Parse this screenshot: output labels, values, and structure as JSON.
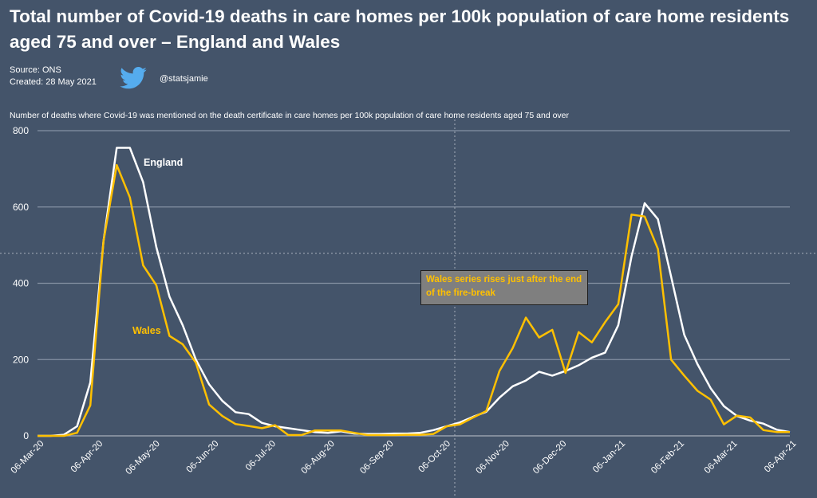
{
  "header": {
    "title": "Total number of Covid-19 deaths in care homes per 100k population of care home residents aged 75 and over – England and Wales",
    "source": "Source: ONS",
    "created": "Created: 28 May 2021",
    "twitter_icon": "twitter-bird-icon",
    "handle": "@statsjamie"
  },
  "colors": {
    "background": "#44546a",
    "england": "#ffffff",
    "wales": "#ffc000",
    "grid": "#8591a3"
  },
  "annotation": {
    "text": "Wales series rises just after the end of the fire-break"
  },
  "chart_data": {
    "type": "line",
    "title": "Number of deaths where Covid-19 was mentioned on the death certificate in care homes per 100k population of care home residents aged 75 and over",
    "xlabel": "",
    "ylabel": "",
    "ylim": [
      0,
      800
    ],
    "yticks": [
      0,
      200,
      400,
      600,
      800
    ],
    "grid": true,
    "x_start": "2020-03-06",
    "x_step_days": 7,
    "xticks": [
      {
        "label": "06-Mar-20",
        "day": 0
      },
      {
        "label": "06-Apr-20",
        "day": 31
      },
      {
        "label": "06-May-20",
        "day": 61
      },
      {
        "label": "06-Jun-20",
        "day": 92
      },
      {
        "label": "06-Jul-20",
        "day": 122
      },
      {
        "label": "06-Aug-20",
        "day": 153
      },
      {
        "label": "06-Sep-20",
        "day": 184
      },
      {
        "label": "06-Oct-20",
        "day": 214
      },
      {
        "label": "06-Nov-20",
        "day": 245
      },
      {
        "label": "06-Dec-20",
        "day": 275
      },
      {
        "label": "06-Jan-21",
        "day": 306
      },
      {
        "label": "06-Feb-21",
        "day": 337
      },
      {
        "label": "06-Mar-21",
        "day": 365
      },
      {
        "label": "06-Apr-21",
        "day": 396
      }
    ],
    "series": [
      {
        "name": "England",
        "label": "England",
        "color": "#ffffff",
        "values": [
          0,
          0,
          3,
          25,
          140,
          510,
          755,
          755,
          665,
          495,
          365,
          290,
          200,
          135,
          92,
          62,
          57,
          34,
          25,
          20,
          15,
          10,
          8,
          12,
          6,
          5,
          5,
          6,
          6,
          8,
          15,
          25,
          35,
          50,
          63,
          100,
          130,
          145,
          168,
          158,
          170,
          185,
          205,
          218,
          290,
          470,
          610,
          568,
          418,
          265,
          188,
          125,
          78,
          52,
          40,
          32,
          16,
          10
        ]
      },
      {
        "name": "Wales",
        "label": "Wales",
        "color": "#ffc000",
        "values": [
          0,
          0,
          0,
          8,
          80,
          510,
          710,
          625,
          447,
          395,
          262,
          240,
          192,
          82,
          52,
          31,
          26,
          20,
          28,
          2,
          2,
          14,
          14,
          14,
          8,
          2,
          2,
          2,
          3,
          3,
          5,
          25,
          30,
          48,
          65,
          170,
          230,
          310,
          258,
          278,
          165,
          272,
          245,
          298,
          345,
          580,
          575,
          490,
          200,
          158,
          118,
          95,
          30,
          53,
          48,
          15,
          10,
          10
        ]
      }
    ]
  }
}
